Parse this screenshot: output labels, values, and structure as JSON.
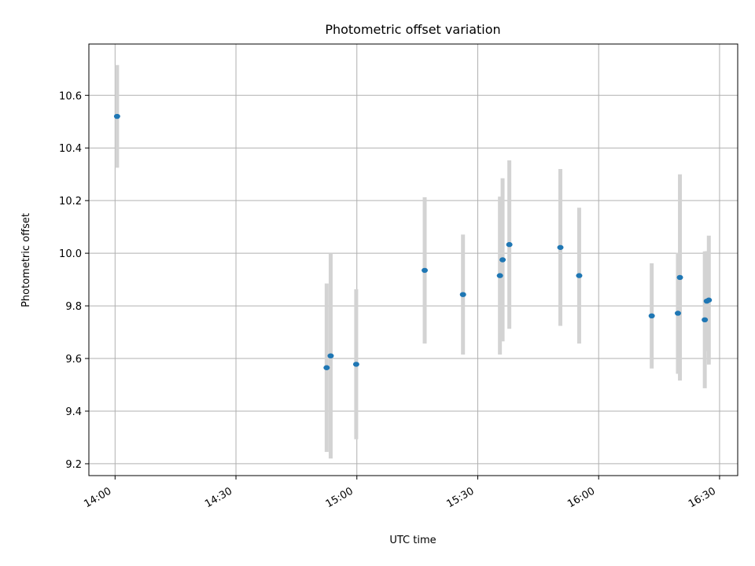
{
  "chart_data": {
    "type": "scatter",
    "title": "Photometric offset variation",
    "xlabel": "UTC time",
    "ylabel": "Photometric offset",
    "x_axis": "time",
    "xlim": [
      "13:53:30",
      "16:34:30"
    ],
    "ylim": [
      9.155,
      10.795
    ],
    "x_ticks": [
      "14:00",
      "14:30",
      "15:00",
      "15:30",
      "16:00",
      "16:30"
    ],
    "y_ticks": [
      "9.2",
      "9.4",
      "9.6",
      "9.8",
      "10.0",
      "10.2",
      "10.4",
      "10.6"
    ],
    "grid": true,
    "marker_color": "#1f77b4",
    "errorbar_color": "#d3d3d3",
    "points": [
      {
        "t": "14:00:30",
        "y": 10.52,
        "err": 0.195
      },
      {
        "t": "14:52:30",
        "y": 9.565,
        "err": 0.32
      },
      {
        "t": "14:53:30",
        "y": 9.61,
        "err": 0.39
      },
      {
        "t": "14:59:50",
        "y": 9.578,
        "err": 0.285
      },
      {
        "t": "15:16:50",
        "y": 9.935,
        "err": 0.278
      },
      {
        "t": "15:26:20",
        "y": 9.843,
        "err": 0.228
      },
      {
        "t": "15:35:30",
        "y": 9.915,
        "err": 0.3
      },
      {
        "t": "15:36:10",
        "y": 9.975,
        "err": 0.31
      },
      {
        "t": "15:37:50",
        "y": 10.033,
        "err": 0.32
      },
      {
        "t": "15:50:30",
        "y": 10.022,
        "err": 0.298
      },
      {
        "t": "15:55:10",
        "y": 9.915,
        "err": 0.258
      },
      {
        "t": "16:13:10",
        "y": 9.762,
        "err": 0.2
      },
      {
        "t": "16:19:40",
        "y": 9.772,
        "err": 0.23
      },
      {
        "t": "16:20:10",
        "y": 9.908,
        "err": 0.392
      },
      {
        "t": "16:26:20",
        "y": 9.747,
        "err": 0.26
      },
      {
        "t": "16:26:50",
        "y": 9.818,
        "err": 0.19
      },
      {
        "t": "16:27:20",
        "y": 9.822,
        "err": 0.245
      }
    ]
  }
}
